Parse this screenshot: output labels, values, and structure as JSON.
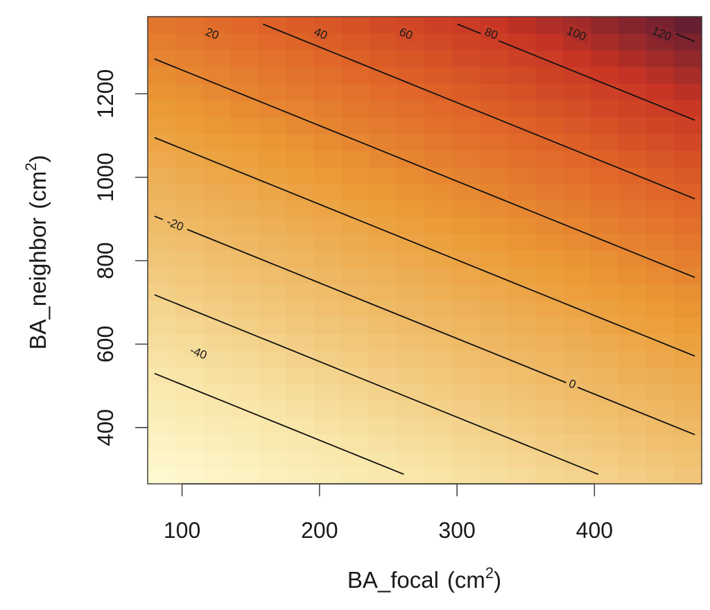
{
  "chart_data": {
    "type": "heatmap",
    "title": "",
    "xlabel": "BA_focal",
    "xlabel_unit": "(cm",
    "xlabel_sup": "2",
    "xlabel_close": ")",
    "ylabel": "BA_neighbor",
    "ylabel_unit": "(cm",
    "ylabel_sup": "2",
    "ylabel_close": ")",
    "xlim": [
      75,
      478
    ],
    "ylim": [
      265,
      1385
    ],
    "x_ticks": [
      100,
      200,
      300,
      400
    ],
    "y_ticks": [
      400,
      600,
      800,
      1000,
      1200
    ],
    "grid": {
      "nx": 20,
      "ny": 28
    },
    "surface": {
      "description": "z = a + b*BA_focal + c*BA_neighbor",
      "a": -107.5,
      "b": 0.1414,
      "c": 0.1061
    },
    "contour_levels": [
      -40,
      -20,
      0,
      20,
      40,
      60,
      80,
      100,
      120
    ],
    "contour_labels": [
      {
        "level": -40,
        "text": "-40",
        "x": 112,
        "y": 580
      },
      {
        "level": -20,
        "text": "-20",
        "x": 95,
        "y": 888
      },
      {
        "level": 0,
        "text": "0",
        "x": 384,
        "y": 505
      },
      {
        "level": 20,
        "text": "20",
        "x": 122,
        "y": 1345
      },
      {
        "level": 40,
        "text": "40",
        "x": 201,
        "y": 1345
      },
      {
        "level": 60,
        "text": "60",
        "x": 263,
        "y": 1345
      },
      {
        "level": 80,
        "text": "80",
        "x": 325,
        "y": 1345
      },
      {
        "level": 100,
        "text": "100",
        "x": 387,
        "y": 1345
      },
      {
        "level": 120,
        "text": "120",
        "x": 449,
        "y": 1345
      }
    ],
    "colors": {
      "low": "#FFFBD3",
      "mid1": "#F8E4A6",
      "mid2": "#F0C070",
      "mid3": "#EB9B36",
      "mid4": "#DF6428",
      "mid5": "#C83424",
      "high": "#561A33",
      "contour": "#111111",
      "frame": "#333333"
    }
  }
}
